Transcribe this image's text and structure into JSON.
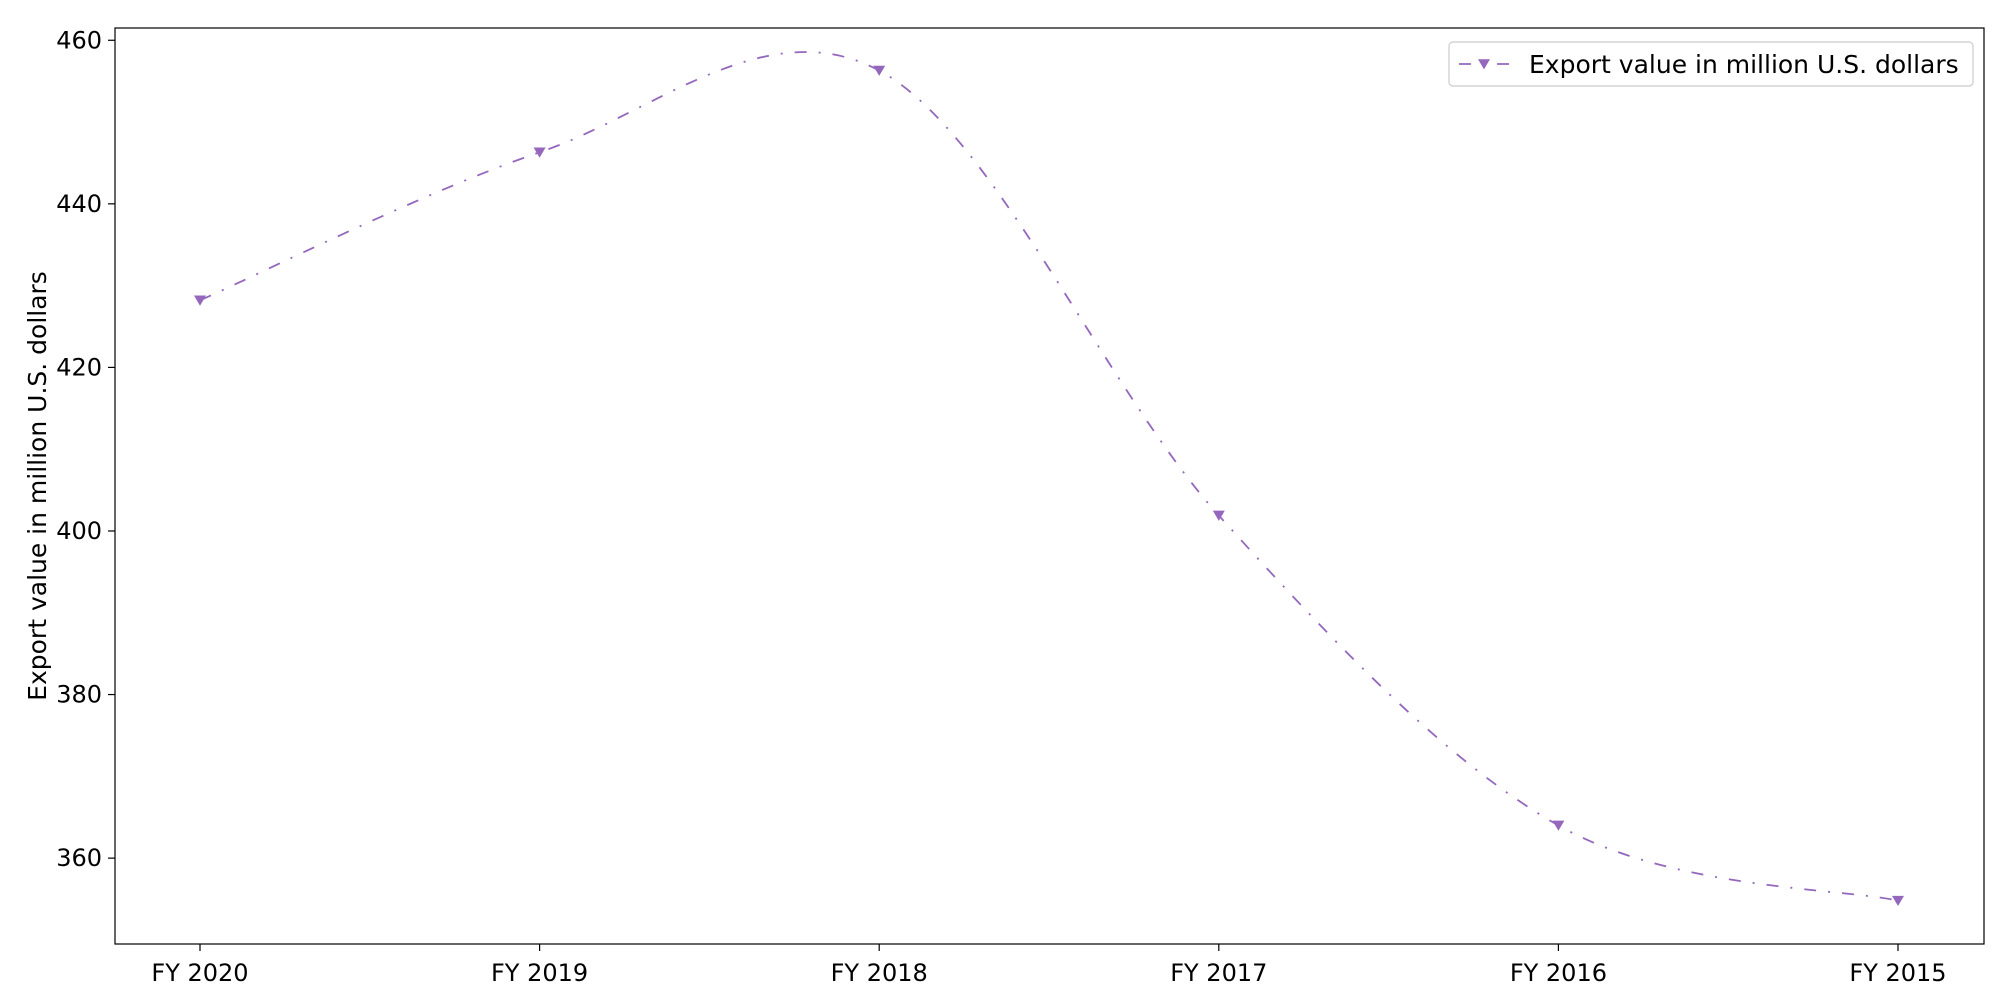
{
  "chart_data": {
    "type": "line",
    "title": "",
    "xlabel": "",
    "ylabel": "Export value in million U.S. dollars",
    "categories": [
      "FY 2020",
      "FY 2019",
      "FY 2018",
      "FY 2017",
      "FY 2016",
      "FY 2015"
    ],
    "series": [
      {
        "name": "Export value in million U.S. dollars",
        "values": [
          428.2,
          446.3,
          456.3,
          401.9,
          364.0,
          354.8
        ],
        "color": "#9467bd",
        "marker": "triangle-down",
        "line_style": "dash-dot"
      }
    ],
    "ylim": [
      349.5,
      461.5
    ],
    "yticks": [
      360,
      380,
      400,
      420,
      440,
      460
    ],
    "grid": false,
    "legend_position": "top-right"
  }
}
